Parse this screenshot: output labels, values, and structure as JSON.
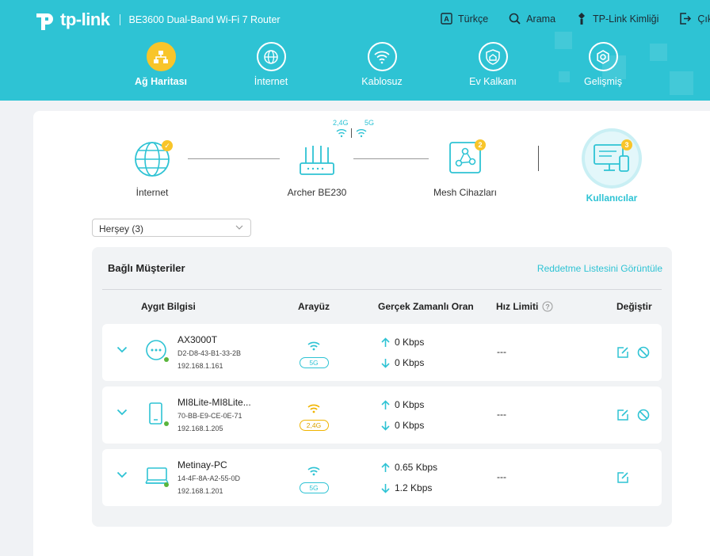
{
  "header": {
    "brand": "tp-link",
    "model": "BE3600 Dual-Band Wi-Fi 7 Router",
    "links": [
      {
        "label": "Türkçe",
        "icon": "language-icon"
      },
      {
        "label": "Arama",
        "icon": "search-icon"
      },
      {
        "label": "TP-Link Kimliği",
        "icon": "tplink-id-icon"
      },
      {
        "label": "Çıkış",
        "icon": "logout-icon"
      }
    ]
  },
  "nav": {
    "items": [
      {
        "label": "Ağ Haritası",
        "icon": "network-map-icon",
        "active": true
      },
      {
        "label": "İnternet",
        "icon": "globe-icon",
        "active": false
      },
      {
        "label": "Kablosuz",
        "icon": "wifi-icon",
        "active": false
      },
      {
        "label": "Ev Kalkanı",
        "icon": "home-shield-icon",
        "active": false
      },
      {
        "label": "Gelişmiş",
        "icon": "gear-icon",
        "active": false
      }
    ]
  },
  "topology": {
    "internet": {
      "label": "İnternet",
      "status": "connected"
    },
    "router": {
      "label": "Archer BE230",
      "band_24": "2,4G",
      "band_5": "5G"
    },
    "mesh": {
      "label": "Mesh Cihazları",
      "count": "2"
    },
    "clients": {
      "label": "Kullanıcılar",
      "count": "3"
    }
  },
  "filter": {
    "selected": "Herşey (3)"
  },
  "clients": {
    "title": "Bağlı Müşteriler",
    "blocklist_link": "Reddetme Listesini Görüntüle",
    "columns": {
      "device": "Aygıt Bilgisi",
      "interface": "Arayüz",
      "rate": "Gerçek Zamanlı Oran",
      "limit": "Hız Limiti",
      "modify": "Değiştir"
    },
    "rows": [
      {
        "name": "AX3000T",
        "mac": "D2-D8-43-B1-33-2B",
        "ip": "192.168.1.161",
        "band": "5G",
        "up": "0 Kbps",
        "down": "0 Kbps",
        "limit": "---",
        "device_icon": "chat-device-icon",
        "can_block": true
      },
      {
        "name": "MI8Lite-MI8Lite...",
        "mac": "70-BB-E9-CE-0E-71",
        "ip": "192.168.1.205",
        "band": "2,4G",
        "up": "0 Kbps",
        "down": "0 Kbps",
        "limit": "---",
        "device_icon": "phone-icon",
        "can_block": true
      },
      {
        "name": "Metinay-PC",
        "mac": "14-4F-8A-A2-55-0D",
        "ip": "192.168.1.201",
        "band": "5G",
        "up": "0.65 Kbps",
        "down": "1.2 Kbps",
        "limit": "---",
        "device_icon": "laptop-icon",
        "can_block": false
      }
    ]
  },
  "colors": {
    "accent": "#2ec3d4",
    "active": "#f8c52a",
    "online": "#5ab53c"
  }
}
